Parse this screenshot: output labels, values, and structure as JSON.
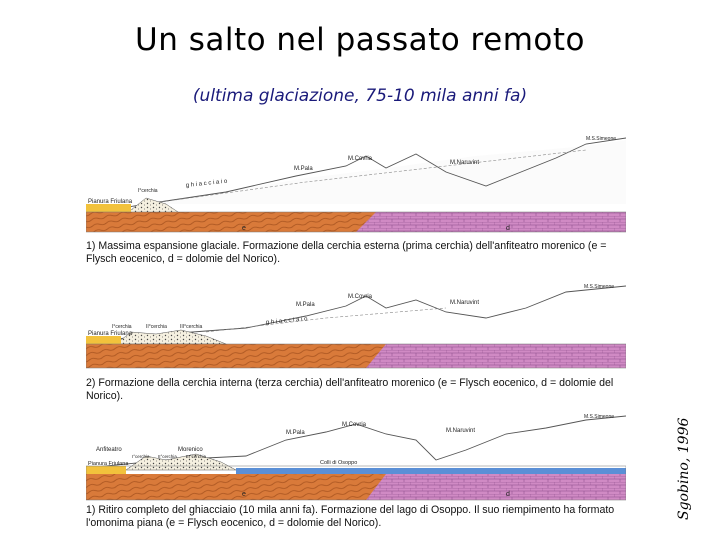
{
  "slide": {
    "title": "Un salto nel passato remoto",
    "subtitle": "(ultima glaciazione, 75-10 mila anni fa)",
    "credit": "Sgobino, 1996"
  },
  "colors": {
    "flysch": "#d97a3a",
    "dolomie": "#d08ac4",
    "moraine": "#f2c23c",
    "lake": "#5a8fd6"
  },
  "panels": [
    {
      "labels": {
        "pianura": "Pianura Friulana",
        "cerchia": "I°cerchia",
        "ghiacciaio": "g h i a c c i a i o",
        "pala": "M.Pala",
        "covria": "M.Covria",
        "naruvint": "M.Naruvint",
        "simeone": "M.S.Simeone",
        "e": "e",
        "d": "d"
      },
      "caption": "1) Massima espansione glaciale. Formazione della cerchia esterna (prima cerchia) dell'anfiteatro morenico (e = Flysch eocenico, d = dolomie del Norico)."
    },
    {
      "labels": {
        "pianura": "Pianura Friulana",
        "cerchia1": "I°cerchia",
        "cerchia2": "II°cerchia",
        "cerchia3": "III°cerchia",
        "ghiacciaio": "g h i a c c i a i o",
        "pala": "M.Pala",
        "covria": "M.Covria",
        "naruvint": "M.Naruvint",
        "simeone": "M.S.Simeone"
      },
      "caption": "2) Formazione della cerchia interna (terza cerchia) dell'anfiteatro morenico (e = Flysch eocenico, d = dolomie del Norico)."
    },
    {
      "labels": {
        "anfiteatro": "Anfiteatro",
        "morenico": "Morenico",
        "cerchia1": "I°cerchia",
        "cerchia2": "II°cerchia",
        "cerchia3": "III°cerchia",
        "pianura": "Pianura Friulana",
        "colli": "Colli di Osoppo",
        "pala": "M.Pala",
        "covria": "M.Covria",
        "naruvint": "M.Naruvint",
        "simeone": "M.S.Simeone",
        "e": "e",
        "d": "d"
      },
      "caption": "1) Ritiro completo del ghiacciaio (10 mila anni fa). Formazione del lago di Osoppo. Il suo riempimento ha formato l'omonima piana (e = Flysch eocenico, d = dolomie del Norico)."
    }
  ]
}
